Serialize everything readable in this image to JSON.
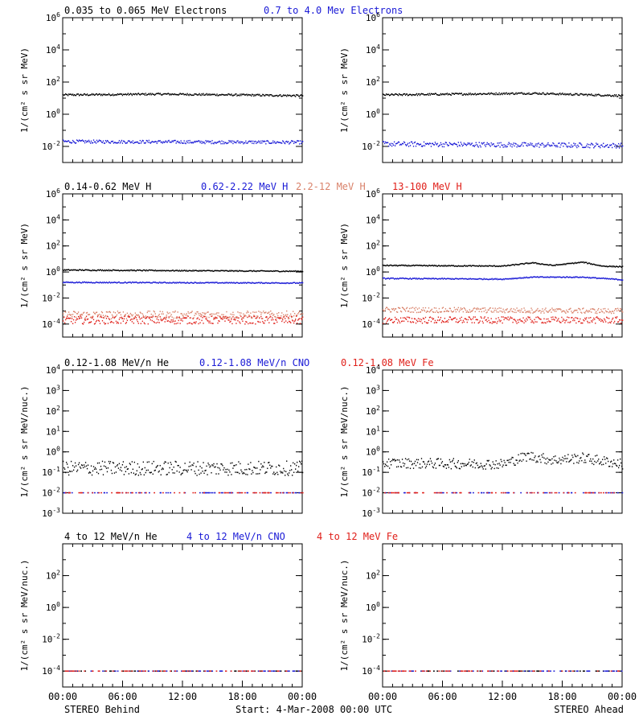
{
  "colors": {
    "black": "#000000",
    "blue": "#1a1ad6",
    "salmon": "#d9826a",
    "red": "#e0201a"
  },
  "footer": {
    "left": "STEREO Behind",
    "center": "Start:  4-Mar-2008 00:00 UTC",
    "right": "STEREO Ahead"
  },
  "chart_data": [
    {
      "type": "scatter",
      "id": "electrons-behind",
      "column": "behind",
      "yscale": "log",
      "ylim_exp": [
        -3,
        6
      ],
      "ylabel": "1/(cm² s sr MeV)",
      "ytick_labels": [
        "10^-2",
        "10^0",
        "10^2",
        "10^4",
        "10^6"
      ],
      "xlim_hours": [
        0,
        24
      ],
      "xticks": [
        "00:00",
        "06:00",
        "12:00",
        "18:00",
        "00:00"
      ],
      "series": [
        {
          "name": "0.035 to 0.065 MeV Electrons",
          "color": "black",
          "log_level": 1.2,
          "noise": 0.06,
          "profile": [
            [
              0,
              1.2
            ],
            [
              10,
              1.25
            ],
            [
              24,
              1.15
            ]
          ]
        },
        {
          "name": "0.7 to 4.0 Mev Electrons",
          "color": "blue",
          "log_level": -1.7,
          "noise": 0.1,
          "profile": [
            [
              0,
              -1.7
            ],
            [
              24,
              -1.75
            ]
          ]
        }
      ]
    },
    {
      "type": "scatter",
      "id": "electrons-ahead",
      "column": "ahead",
      "yscale": "log",
      "ylim_exp": [
        -3,
        6
      ],
      "ylabel": "1/(cm² s sr MeV)",
      "ytick_labels": [
        "10^-2",
        "10^0",
        "10^2",
        "10^4",
        "10^6"
      ],
      "xlim_hours": [
        0,
        24
      ],
      "xticks": [
        "00:00",
        "06:00",
        "12:00",
        "18:00",
        "00:00"
      ],
      "series": [
        {
          "name": "0.035 to 0.065 MeV Electrons",
          "color": "black",
          "profile": [
            [
              0,
              1.2
            ],
            [
              15,
              1.3
            ],
            [
              24,
              1.15
            ]
          ],
          "noise": 0.06
        },
        {
          "name": "0.7 to 4.0 Mev Electrons",
          "color": "blue",
          "profile": [
            [
              0,
              -1.85
            ],
            [
              24,
              -1.95
            ]
          ],
          "noise": 0.15
        }
      ]
    },
    {
      "type": "scatter",
      "id": "protons-behind",
      "column": "behind",
      "yscale": "log",
      "ylim_exp": [
        -5,
        6
      ],
      "ylabel": "1/(cm² s sr MeV)",
      "ytick_labels": [
        "10^-4",
        "10^-2",
        "10^0",
        "10^2",
        "10^4",
        "10^6"
      ],
      "xlim_hours": [
        0,
        24
      ],
      "xticks": [
        "00:00",
        "06:00",
        "12:00",
        "18:00",
        "00:00"
      ],
      "series": [
        {
          "name": "0.14-0.62 MeV H",
          "color": "black",
          "profile": [
            [
              0,
              0.15
            ],
            [
              24,
              0.05
            ]
          ],
          "noise": 0.04
        },
        {
          "name": "0.62-2.22 MeV H",
          "color": "blue",
          "profile": [
            [
              0,
              -0.8
            ],
            [
              24,
              -0.85
            ]
          ],
          "noise": 0.04
        },
        {
          "name": "2.2-12 MeV H",
          "color": "salmon",
          "profile": [
            [
              0,
              -3.3
            ],
            [
              24,
              -3.3
            ]
          ],
          "noise": 0.3
        },
        {
          "name": "13-100 MeV H",
          "color": "red",
          "profile": [
            [
              0,
              -3.7
            ],
            [
              24,
              -3.7
            ]
          ],
          "noise": 0.3
        }
      ]
    },
    {
      "type": "scatter",
      "id": "protons-ahead",
      "column": "ahead",
      "yscale": "log",
      "ylim_exp": [
        -5,
        6
      ],
      "ylabel": "1/(cm² s sr MeV)",
      "ytick_labels": [
        "10^-4",
        "10^-2",
        "10^0",
        "10^2",
        "10^4",
        "10^6"
      ],
      "xlim_hours": [
        0,
        24
      ],
      "xticks": [
        "00:00",
        "06:00",
        "12:00",
        "18:00",
        "00:00"
      ],
      "series": [
        {
          "name": "0.14-0.62 MeV H",
          "color": "black",
          "profile": [
            [
              0,
              0.5
            ],
            [
              12,
              0.45
            ],
            [
              15,
              0.7
            ],
            [
              17,
              0.5
            ],
            [
              20,
              0.75
            ],
            [
              22,
              0.45
            ],
            [
              24,
              0.4
            ]
          ],
          "noise": 0.04
        },
        {
          "name": "0.62-2.22 MeV H",
          "color": "blue",
          "profile": [
            [
              0,
              -0.5
            ],
            [
              12,
              -0.55
            ],
            [
              15,
              -0.4
            ],
            [
              20,
              -0.4
            ],
            [
              24,
              -0.6
            ]
          ],
          "noise": 0.04
        },
        {
          "name": "2.2-12 MeV H",
          "color": "salmon",
          "profile": [
            [
              0,
              -2.9
            ],
            [
              24,
              -3.0
            ]
          ],
          "noise": 0.2
        },
        {
          "name": "13-100 MeV H",
          "color": "red",
          "profile": [
            [
              0,
              -3.7
            ],
            [
              24,
              -3.7
            ]
          ],
          "noise": 0.25
        }
      ]
    },
    {
      "type": "scatter",
      "id": "heavy-behind",
      "column": "behind",
      "yscale": "log",
      "ylim_exp": [
        -3,
        4
      ],
      "ylabel": "1/(cm² s sr MeV/nuc.)",
      "ytick_labels": [
        "10^-3",
        "10^-2",
        "10^-1",
        "10^0",
        "10^1",
        "10^2",
        "10^3",
        "10^4"
      ],
      "xlim_hours": [
        0,
        24
      ],
      "xticks": [
        "00:00",
        "06:00",
        "12:00",
        "18:00",
        "00:00"
      ],
      "series": [
        {
          "name": "0.12-1.08 MeV/n He",
          "color": "black",
          "profile": [
            [
              0,
              -0.8
            ],
            [
              24,
              -0.8
            ]
          ],
          "noise": 0.35
        },
        {
          "name": "0.12-1.08 MeV/n CNO",
          "color": "blue",
          "profile": [
            [
              0,
              -2.0
            ],
            [
              24,
              -2.0
            ]
          ],
          "noise": 0,
          "sparse": true
        },
        {
          "name": "0.12-1.08 MeV Fe",
          "color": "red",
          "profile": [
            [
              0,
              -2.0
            ],
            [
              24,
              -2.0
            ]
          ],
          "noise": 0,
          "sparse": true
        }
      ]
    },
    {
      "type": "scatter",
      "id": "heavy-ahead",
      "column": "ahead",
      "yscale": "log",
      "ylim_exp": [
        -3,
        4
      ],
      "ylabel": "1/(cm² s sr MeV/nuc.)",
      "ytick_labels": [
        "10^-3",
        "10^-2",
        "10^-1",
        "10^0",
        "10^1",
        "10^2",
        "10^3",
        "10^4"
      ],
      "xlim_hours": [
        0,
        24
      ],
      "xticks": [
        "00:00",
        "06:00",
        "12:00",
        "18:00",
        "00:00"
      ],
      "series": [
        {
          "name": "0.12-1.08 MeV/n He",
          "color": "black",
          "profile": [
            [
              0,
              -0.55
            ],
            [
              12,
              -0.6
            ],
            [
              14.5,
              -0.2
            ],
            [
              17,
              -0.4
            ],
            [
              20,
              -0.3
            ],
            [
              24,
              -0.6
            ]
          ],
          "noise": 0.25
        },
        {
          "name": "0.12-1.08 MeV/n CNO",
          "color": "blue",
          "profile": [
            [
              0,
              -2.0
            ],
            [
              24,
              -2.0
            ]
          ],
          "noise": 0,
          "sparse": true
        },
        {
          "name": "0.12-1.08 MeV Fe",
          "color": "red",
          "profile": [
            [
              0,
              -2.0
            ],
            [
              24,
              -2.0
            ]
          ],
          "noise": 0,
          "sparse": true
        }
      ]
    },
    {
      "type": "scatter",
      "id": "high-heavy-behind",
      "column": "behind",
      "yscale": "log",
      "ylim_exp": [
        -5,
        4
      ],
      "ylabel": "1/(cm² s sr MeV/nuc.)",
      "ytick_labels": [
        "10^-4",
        "10^-2",
        "10^0",
        "10^2"
      ],
      "xlim_hours": [
        0,
        24
      ],
      "xticks": [
        "00:00",
        "06:00",
        "12:00",
        "18:00",
        "00:00"
      ],
      "series": [
        {
          "name": "4 to 12 MeV/n He",
          "color": "black",
          "profile": [
            [
              0,
              -4.0
            ],
            [
              24,
              -4.0
            ]
          ],
          "noise": 0,
          "sparse": true
        },
        {
          "name": "4 to 12 MeV/n CNO",
          "color": "blue",
          "profile": [
            [
              0,
              -4.0
            ],
            [
              24,
              -4.0
            ]
          ],
          "noise": 0,
          "sparse": true
        },
        {
          "name": "4 to 12 MeV Fe",
          "color": "red",
          "profile": [
            [
              0,
              -4.0
            ],
            [
              24,
              -4.0
            ]
          ],
          "noise": 0,
          "sparse": true
        }
      ]
    },
    {
      "type": "scatter",
      "id": "high-heavy-ahead",
      "column": "ahead",
      "yscale": "log",
      "ylim_exp": [
        -5,
        4
      ],
      "ylabel": "1/(cm² s sr MeV/nuc.)",
      "ytick_labels": [
        "10^-4",
        "10^-2",
        "10^0",
        "10^2"
      ],
      "xlim_hours": [
        0,
        24
      ],
      "xticks": [
        "00:00",
        "06:00",
        "12:00",
        "18:00",
        "00:00"
      ],
      "series": [
        {
          "name": "4 to 12 MeV/n He",
          "color": "black",
          "profile": [
            [
              0,
              -4.0
            ],
            [
              24,
              -4.0
            ]
          ],
          "noise": 0,
          "sparse": true
        },
        {
          "name": "4 to 12 MeV/n CNO",
          "color": "blue",
          "profile": [
            [
              0,
              -4.0
            ],
            [
              24,
              -4.0
            ]
          ],
          "noise": 0,
          "sparse": true
        },
        {
          "name": "4 to 12 MeV Fe",
          "color": "red",
          "profile": [
            [
              0,
              -4.0
            ],
            [
              24,
              -4.0
            ]
          ],
          "noise": 0,
          "sparse": true
        }
      ]
    }
  ]
}
